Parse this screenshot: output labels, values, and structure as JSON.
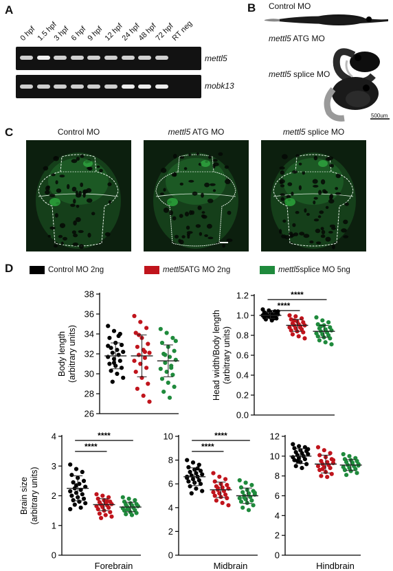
{
  "panels": {
    "A": "A",
    "B": "B",
    "C": "C",
    "D": "D"
  },
  "panelA": {
    "lanes": [
      "0 hpf",
      "1.5 hpf",
      "3 hpf",
      "6 hpf",
      "9 hpf",
      "12 hpf",
      "24 hpf",
      "48 hpf",
      "72 hpf",
      "RT neg"
    ],
    "genes": [
      "mettl5",
      "mobk13"
    ]
  },
  "panelB": {
    "labels": [
      {
        "pre": "",
        "italic": "",
        "post": "Control MO"
      },
      {
        "pre": "",
        "italic": "mettl5",
        "post": " ATG MO"
      },
      {
        "pre": "",
        "italic": "mettl5",
        "post": " splice MO"
      }
    ],
    "scalebar": "500um"
  },
  "panelC": {
    "titles": [
      {
        "italic": "",
        "post": "Control MO"
      },
      {
        "italic": "mettl5",
        "post": " ATG MO"
      },
      {
        "italic": "mettl5",
        "post": " splice MO"
      }
    ]
  },
  "legend": [
    {
      "italic": "",
      "text": "Control MO 2ng",
      "color": "#000000"
    },
    {
      "italic": "mettl5",
      "text": " ATG MO 2ng",
      "color": "#c0141c"
    },
    {
      "italic": "mettl5",
      "text": " splice MO 5ng",
      "color": "#1f8a3c"
    }
  ],
  "chart_data": [
    {
      "type": "scatter",
      "ylabel": "Body length (arbitrary units)",
      "xlabel": "",
      "ylim": [
        26,
        38
      ],
      "yticks": [
        26,
        28,
        30,
        32,
        34,
        36,
        38
      ],
      "groups": [
        {
          "name": "Control MO 2ng",
          "color": "#000000",
          "mean": 31.8,
          "sd": 1.3,
          "values": [
            34.8,
            34.3,
            34.0,
            33.6,
            33.1,
            32.9,
            32.6,
            32.4,
            32.2,
            32.1,
            31.9,
            31.7,
            31.5,
            31.3,
            31.0,
            30.8,
            30.6,
            30.3,
            30.0,
            29.6,
            29.2,
            33.8,
            32.8,
            31.1
          ]
        },
        {
          "name": "mettl5 ATG MO 2ng",
          "color": "#c0141c",
          "mean": 31.8,
          "sd": 2.1,
          "values": [
            35.8,
            35.2,
            34.6,
            34.1,
            33.6,
            33.0,
            32.7,
            32.4,
            32.1,
            31.9,
            31.6,
            31.3,
            31.0,
            30.6,
            30.2,
            29.6,
            29.0,
            28.5,
            27.8,
            27.2,
            33.9,
            32.2
          ]
        },
        {
          "name": "mettl5 splice MO 5ng",
          "color": "#1f8a3c",
          "mean": 31.3,
          "sd": 1.6,
          "values": [
            34.5,
            34.1,
            33.6,
            33.1,
            32.7,
            32.3,
            32.0,
            31.7,
            31.4,
            31.1,
            30.8,
            30.5,
            30.2,
            29.9,
            29.5,
            29.1,
            28.7,
            28.2,
            27.6,
            33.3,
            31.9,
            30.6
          ]
        }
      ],
      "annotations": []
    },
    {
      "type": "scatter",
      "ylabel": "Head width/Body length (arbitrary units)",
      "xlabel": "",
      "ylim": [
        0,
        1.2
      ],
      "yticks": [
        0.0,
        0.2,
        0.4,
        0.6,
        0.8,
        1.0,
        1.2
      ],
      "groups": [
        {
          "name": "Control MO 2ng",
          "color": "#000000",
          "mean": 1.0,
          "sd": 0.03,
          "values": [
            1.06,
            1.05,
            1.04,
            1.03,
            1.03,
            1.02,
            1.02,
            1.01,
            1.01,
            1.0,
            1.0,
            1.0,
            0.99,
            0.99,
            0.98,
            0.98,
            0.97,
            0.96,
            0.95,
            1.04,
            1.0,
            0.97
          ]
        },
        {
          "name": "mettl5 ATG MO 2ng",
          "color": "#c0141c",
          "mean": 0.9,
          "sd": 0.06,
          "values": [
            1.0,
            0.99,
            0.97,
            0.96,
            0.94,
            0.93,
            0.92,
            0.91,
            0.9,
            0.9,
            0.89,
            0.88,
            0.87,
            0.86,
            0.85,
            0.84,
            0.83,
            0.81,
            0.79,
            0.77,
            0.95,
            0.88
          ]
        },
        {
          "name": "mettl5 splice MO 5ng",
          "color": "#1f8a3c",
          "mean": 0.84,
          "sd": 0.06,
          "values": [
            0.98,
            0.95,
            0.93,
            0.91,
            0.9,
            0.88,
            0.87,
            0.86,
            0.85,
            0.84,
            0.83,
            0.82,
            0.81,
            0.8,
            0.79,
            0.78,
            0.77,
            0.75,
            0.73,
            0.71,
            0.89,
            0.83
          ]
        }
      ],
      "annotations": [
        {
          "text": "****",
          "from": 0,
          "to": 1
        },
        {
          "text": "****",
          "from": 0,
          "to": 2
        }
      ]
    },
    {
      "type": "scatter",
      "ylabel": "Brain size (arbitrary units)",
      "xlabel": "Forebrain",
      "ylim": [
        0,
        4
      ],
      "yticks": [
        0,
        1,
        2,
        3,
        4
      ],
      "groups": [
        {
          "name": "Control MO 2ng",
          "color": "#000000",
          "mean": 2.25,
          "sd": 0.42,
          "values": [
            3.05,
            2.9,
            2.8,
            2.7,
            2.6,
            2.5,
            2.45,
            2.4,
            2.3,
            2.25,
            2.2,
            2.15,
            2.1,
            2.05,
            2.0,
            1.95,
            1.9,
            1.85,
            1.8,
            1.75,
            1.7,
            1.6,
            1.55,
            2.35
          ]
        },
        {
          "name": "mettl5 ATG MO 2ng",
          "color": "#c0141c",
          "mean": 1.7,
          "sd": 0.2,
          "values": [
            2.05,
            2.0,
            1.95,
            1.9,
            1.85,
            1.8,
            1.78,
            1.75,
            1.72,
            1.7,
            1.68,
            1.65,
            1.62,
            1.6,
            1.55,
            1.5,
            1.45,
            1.4,
            1.35,
            1.3,
            1.25,
            1.82
          ]
        },
        {
          "name": "mettl5 splice MO 5ng",
          "color": "#1f8a3c",
          "mean": 1.62,
          "sd": 0.16,
          "values": [
            1.95,
            1.9,
            1.85,
            1.8,
            1.75,
            1.72,
            1.7,
            1.68,
            1.65,
            1.62,
            1.6,
            1.58,
            1.55,
            1.52,
            1.5,
            1.45,
            1.42,
            1.38,
            1.35,
            1.65,
            1.55
          ]
        }
      ],
      "annotations": [
        {
          "text": "****",
          "from": 0,
          "to": 1
        },
        {
          "text": "****",
          "from": 0,
          "to": 2
        }
      ]
    },
    {
      "type": "scatter",
      "ylabel": "",
      "xlabel": "Midbrain",
      "ylim": [
        0,
        10
      ],
      "yticks": [
        0,
        2,
        4,
        6,
        8,
        10
      ],
      "groups": [
        {
          "name": "Control MO 2ng",
          "color": "#000000",
          "mean": 6.6,
          "sd": 0.75,
          "values": [
            8.0,
            7.8,
            7.6,
            7.4,
            7.2,
            7.1,
            7.0,
            6.9,
            6.8,
            6.7,
            6.6,
            6.5,
            6.4,
            6.3,
            6.2,
            6.1,
            6.0,
            5.8,
            5.6,
            5.4,
            5.2,
            7.3,
            6.6
          ]
        },
        {
          "name": "mettl5 ATG MO 2ng",
          "color": "#c0141c",
          "mean": 5.5,
          "sd": 0.65,
          "values": [
            6.9,
            6.6,
            6.4,
            6.2,
            6.0,
            5.9,
            5.8,
            5.7,
            5.6,
            5.5,
            5.4,
            5.3,
            5.2,
            5.1,
            5.0,
            4.9,
            4.8,
            4.6,
            4.4,
            4.2,
            5.65
          ]
        },
        {
          "name": "mettl5 splice MO 5ng",
          "color": "#1f8a3c",
          "mean": 5.0,
          "sd": 0.65,
          "values": [
            6.3,
            6.1,
            5.9,
            5.7,
            5.5,
            5.4,
            5.3,
            5.2,
            5.1,
            5.0,
            4.9,
            4.8,
            4.7,
            4.6,
            4.5,
            4.4,
            4.2,
            4.0,
            3.8,
            5.25,
            4.85
          ]
        }
      ],
      "annotations": [
        {
          "text": "****",
          "from": 0,
          "to": 1
        },
        {
          "text": "****",
          "from": 0,
          "to": 2
        }
      ]
    },
    {
      "type": "scatter",
      "ylabel": "",
      "xlabel": "Hindbrain",
      "ylim": [
        0,
        12
      ],
      "yticks": [
        0,
        2,
        4,
        6,
        8,
        10,
        12
      ],
      "groups": [
        {
          "name": "Control MO 2ng",
          "color": "#000000",
          "mean": 10.0,
          "sd": 0.75,
          "values": [
            11.2,
            11.0,
            10.9,
            10.8,
            10.6,
            10.5,
            10.4,
            10.3,
            10.2,
            10.1,
            10.0,
            9.9,
            9.8,
            9.7,
            9.6,
            9.4,
            9.2,
            9.0,
            8.8,
            10.7,
            9.5
          ]
        },
        {
          "name": "mettl5 ATG MO 2ng",
          "color": "#c0141c",
          "mean": 9.2,
          "sd": 0.9,
          "values": [
            10.9,
            10.6,
            10.3,
            10.1,
            9.9,
            9.7,
            9.5,
            9.4,
            9.3,
            9.2,
            9.1,
            9.0,
            8.9,
            8.8,
            8.6,
            8.4,
            8.2,
            8.0,
            7.9,
            9.6,
            8.7
          ]
        },
        {
          "name": "mettl5 splice MO 5ng",
          "color": "#1f8a3c",
          "mean": 9.1,
          "sd": 0.55,
          "values": [
            10.2,
            10.0,
            9.8,
            9.7,
            9.6,
            9.5,
            9.4,
            9.3,
            9.2,
            9.1,
            9.0,
            8.9,
            8.8,
            8.7,
            8.6,
            8.5,
            8.3,
            8.1,
            9.35,
            9.05
          ]
        }
      ],
      "annotations": []
    }
  ]
}
